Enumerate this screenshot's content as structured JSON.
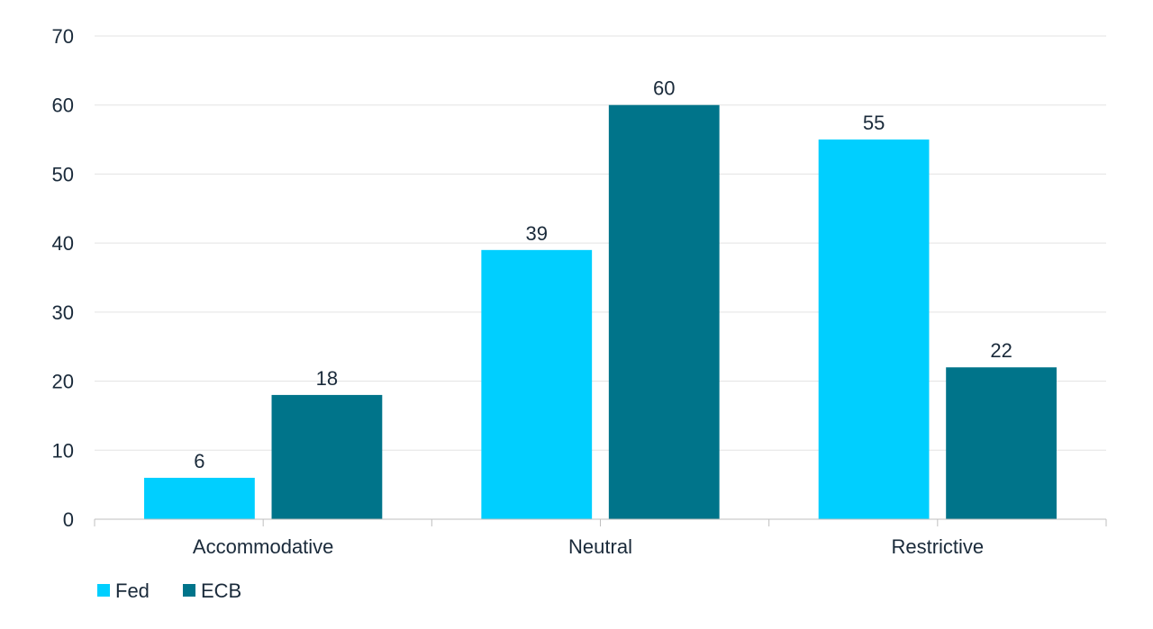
{
  "chart_data": {
    "type": "bar",
    "title": "",
    "xlabel": "",
    "ylabel": "",
    "categories": [
      "Accommodative",
      "Neutral",
      "Restrictive"
    ],
    "series": [
      {
        "name": "Fed",
        "color": "#00cfff",
        "values": [
          6,
          39,
          55
        ]
      },
      {
        "name": "ECB",
        "color": "#00748a",
        "values": [
          18,
          60,
          22
        ]
      }
    ],
    "ylim": [
      0,
      70
    ],
    "yticks": [
      0,
      10,
      20,
      30,
      40,
      50,
      60,
      70
    ],
    "grid": true,
    "legend_position": "bottom-left"
  }
}
